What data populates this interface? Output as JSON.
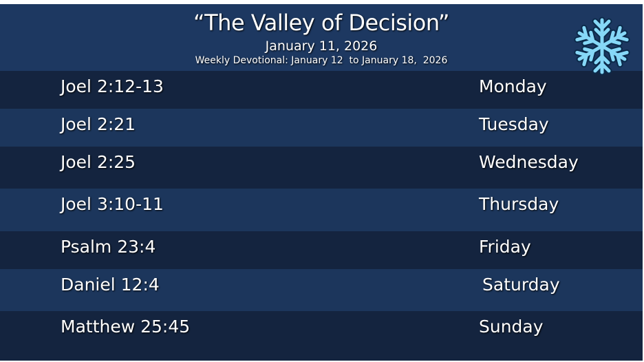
{
  "header": {
    "title": "“The Valley of Decision”",
    "date": "January 11, 2026",
    "subtitle": "Weekly Devotional: January 12  to January 18,  2026"
  },
  "table": {
    "rows": [
      [
        "Joel 2:12-13",
        "Monday"
      ],
      [
        "Joel 2:21",
        "Tuesday"
      ],
      [
        "Joel 2:25",
        "Wednesday"
      ],
      [
        "Joel 3:10-11",
        "Thursday"
      ],
      [
        "Psalm 23:4",
        "Friday"
      ],
      [
        "Daniel 12:4",
        "Saturday"
      ],
      [
        "Matthew 25:45",
        "Sunday"
      ]
    ]
  }
}
